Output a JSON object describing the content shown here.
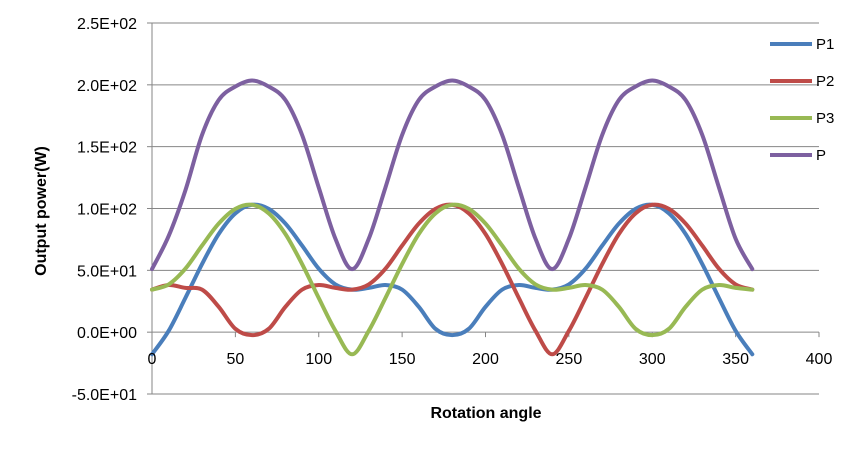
{
  "chart_data": {
    "type": "line",
    "xlabel": "Rotation angle",
    "ylabel": "Output power(W)",
    "xlim": [
      0,
      400
    ],
    "ylim": [
      -50,
      250
    ],
    "x_ticks": [
      0,
      50,
      100,
      150,
      200,
      250,
      300,
      350,
      400
    ],
    "x_tick_labels": [
      "0",
      "50",
      "100",
      "150",
      "200",
      "250",
      "300",
      "350",
      "400"
    ],
    "y_ticks": [
      -50,
      0,
      50,
      100,
      150,
      200,
      250
    ],
    "y_tick_labels": [
      "-5.0E+01",
      "0.0E+00",
      "5.0E+01",
      "1.0E+02",
      "1.5E+02",
      "2.0E+02",
      "2.5E+02"
    ],
    "grid": "horizontal",
    "legend_position": "right",
    "x": [
      0,
      10,
      20,
      30,
      40,
      50,
      60,
      70,
      80,
      90,
      100,
      110,
      120,
      130,
      140,
      150,
      160,
      170,
      180,
      190,
      200,
      210,
      220,
      230,
      240,
      250,
      260,
      270,
      280,
      290,
      300,
      310,
      320,
      330,
      340,
      350,
      360
    ],
    "series": [
      {
        "name": "P1",
        "color": "#4a7ebb",
        "values": [
          -17.9,
          1.1,
          27.6,
          55.1,
          79.4,
          96.1,
          103.0,
          99.7,
          87.8,
          70.0,
          51.3,
          38.6,
          34.4,
          35.8,
          38.1,
          34.4,
          20.5,
          2.7,
          -2.4,
          2.7,
          20.5,
          34.4,
          38.1,
          35.8,
          34.4,
          38.6,
          51.3,
          70.0,
          87.8,
          99.7,
          103.0,
          96.1,
          79.4,
          55.1,
          27.6,
          1.1,
          -17.9
        ]
      },
      {
        "name": "P2",
        "color": "#be4b48",
        "values": [
          34.4,
          38.1,
          35.8,
          34.4,
          20.5,
          2.7,
          -2.4,
          2.7,
          20.5,
          34.4,
          38.1,
          35.8,
          34.4,
          38.6,
          51.3,
          70.0,
          87.8,
          99.7,
          103.0,
          96.1,
          79.4,
          55.1,
          27.6,
          1.1,
          -17.9,
          1.1,
          27.6,
          55.1,
          79.4,
          96.1,
          103.0,
          99.7,
          87.8,
          70.0,
          51.3,
          38.6,
          34.4
        ]
      },
      {
        "name": "P3",
        "color": "#98b954",
        "values": [
          34.4,
          38.6,
          51.3,
          70.0,
          87.8,
          99.7,
          103.0,
          96.1,
          79.4,
          55.1,
          27.6,
          1.1,
          -17.9,
          1.1,
          27.6,
          55.1,
          79.4,
          96.1,
          103.0,
          99.7,
          87.8,
          70.0,
          51.3,
          38.6,
          34.4,
          35.8,
          38.1,
          34.4,
          20.5,
          2.7,
          -2.4,
          2.7,
          20.5,
          34.4,
          38.1,
          35.8,
          34.4
        ]
      },
      {
        "name": "P",
        "color": "#7d60a0",
        "values": [
          51.0,
          77.8,
          114.6,
          159.5,
          187.7,
          198.6,
          203.5,
          198.6,
          187.7,
          159.5,
          117.0,
          75.5,
          51.0,
          75.5,
          117.0,
          159.5,
          187.7,
          198.6,
          203.5,
          198.6,
          187.7,
          159.5,
          117.0,
          75.5,
          51.0,
          75.5,
          117.0,
          159.5,
          187.7,
          198.6,
          203.5,
          198.6,
          187.7,
          159.5,
          117.0,
          75.5,
          51.0
        ]
      }
    ]
  }
}
